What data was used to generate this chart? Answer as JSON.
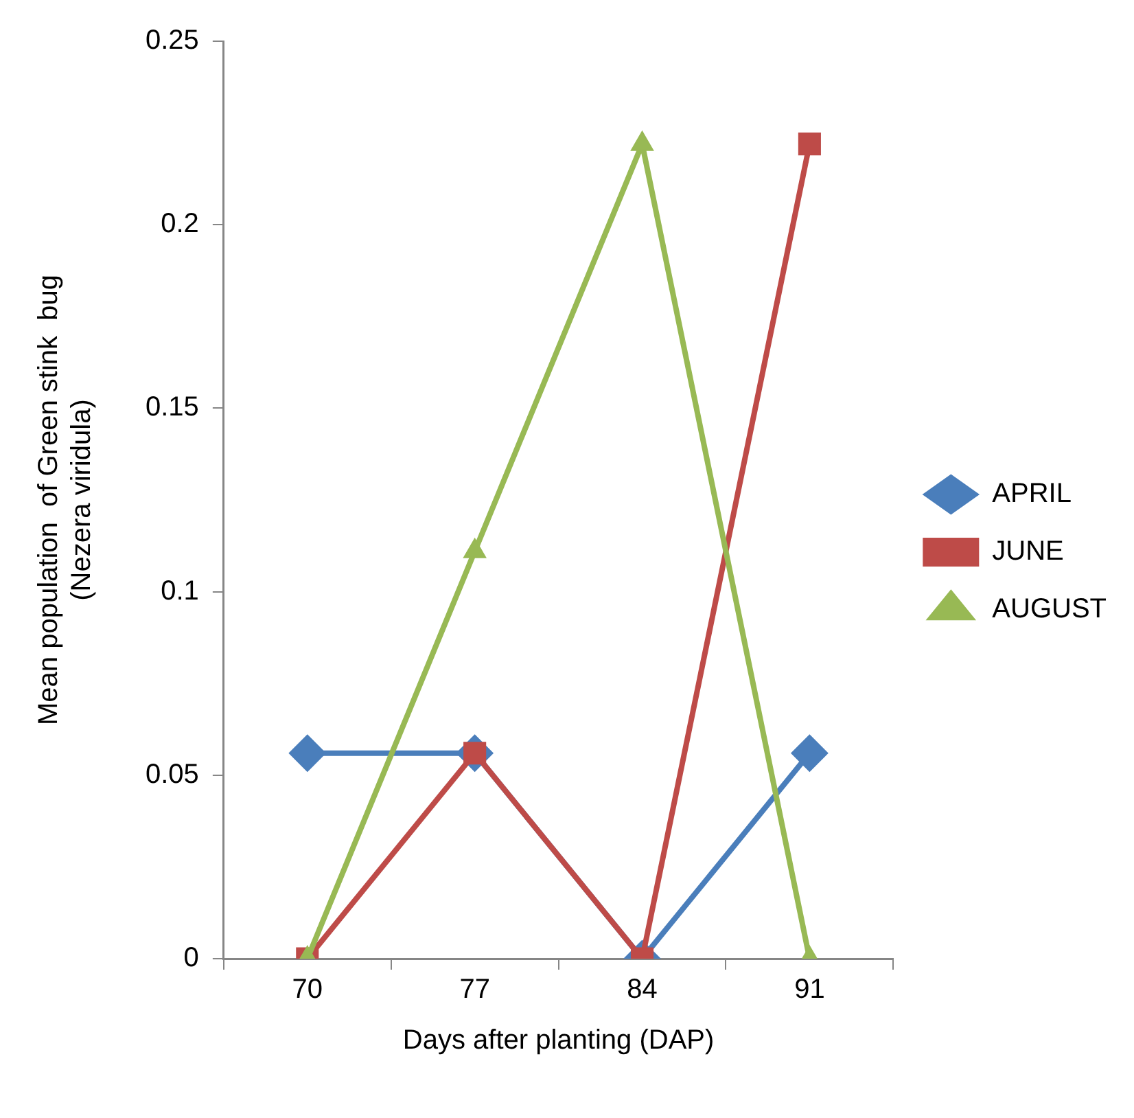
{
  "chart_data": {
    "type": "line",
    "xlabel": "Days after planting (DAP)",
    "ylabel": "Mean population  of Green stink  bug\n(Nezera viridula)",
    "categories": [
      "70",
      "77",
      "84",
      "91"
    ],
    "series": [
      {
        "name": "APRIL",
        "color": "#4a7ebb",
        "marker": "diamond",
        "values": [
          0.056,
          0.056,
          0,
          0.056
        ]
      },
      {
        "name": "JUNE",
        "color": "#be4b48",
        "marker": "square",
        "values": [
          0,
          0.056,
          0,
          0.222
        ]
      },
      {
        "name": "AUGUST",
        "color": "#98b954",
        "marker": "triangle",
        "values": [
          0,
          0.111,
          0.222,
          0
        ]
      }
    ],
    "ylim": [
      0,
      0.25
    ],
    "yticks": [
      0,
      0.05,
      0.1,
      0.15,
      0.2,
      0.25
    ],
    "grid": false,
    "legend": "right",
    "line_style": "solid"
  }
}
